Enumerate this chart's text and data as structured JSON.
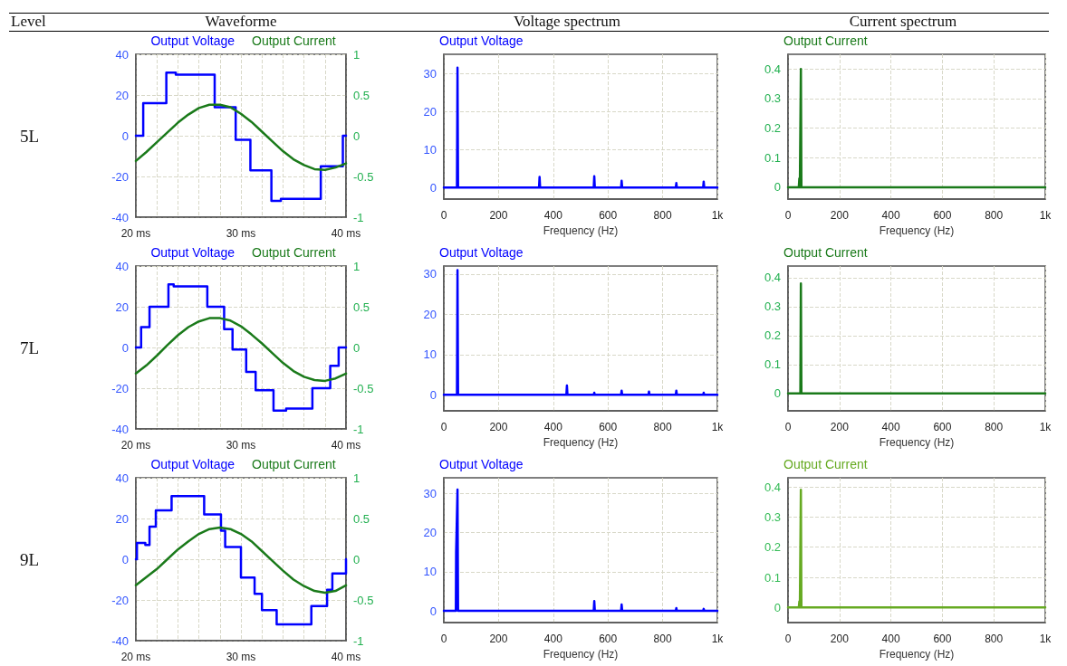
{
  "chart_data": [
    {
      "type": "step",
      "title": "Waveforme",
      "annotations": [
        "Level",
        "5L"
      ],
      "legend": "top",
      "grid": true,
      "xlim": [
        20,
        40
      ],
      "xticks": [
        {
          "value": 20,
          "label": "20 ms"
        },
        {
          "value": 22,
          "label": null
        },
        {
          "value": 24,
          "label": null
        },
        {
          "value": 26,
          "label": null
        },
        {
          "value": 28,
          "label": null
        },
        {
          "value": 30,
          "label": "30 ms"
        },
        {
          "value": 32,
          "label": null
        },
        {
          "value": 34,
          "label": null
        },
        {
          "value": 36,
          "label": null
        },
        {
          "value": 38,
          "label": null
        },
        {
          "value": 40,
          "label": "40 ms"
        }
      ],
      "ylim": [
        -40,
        40
      ],
      "yticks": [
        -40,
        -20,
        0,
        20,
        40
      ],
      "y2lim": [
        -1,
        1
      ],
      "y2ticks": [
        -1,
        -0.5,
        0,
        0.5,
        1
      ],
      "series": [
        {
          "name": "Output Voltage",
          "color": "#0000ff",
          "x": [
            20,
            20.7,
            22.9,
            23.8,
            27.5,
            29.5,
            30.9,
            32.9,
            33.8,
            37.6,
            39.7,
            40
          ],
          "values": [
            0,
            16,
            31,
            30,
            14,
            -2,
            -17,
            -32,
            -31,
            -15,
            0,
            0
          ]
        },
        {
          "name": "Output Current",
          "type": "line",
          "axis": "y2",
          "color": "#1a7a1a",
          "x": [
            20,
            21,
            22,
            23,
            24,
            25,
            26,
            27,
            28,
            29,
            30,
            31,
            32,
            33,
            34,
            35,
            36,
            37,
            38,
            39,
            40
          ],
          "values": [
            -0.31,
            -0.2,
            -0.08,
            0.04,
            0.16,
            0.26,
            0.34,
            0.38,
            0.38,
            0.35,
            0.27,
            0.17,
            0.05,
            -0.07,
            -0.19,
            -0.29,
            -0.36,
            -0.41,
            -0.42,
            -0.39,
            -0.34
          ]
        }
      ]
    },
    {
      "type": "line",
      "title": "Voltage spectrum",
      "legend": "top left",
      "grid": true,
      "xlabel": "Frequency (Hz)",
      "xlim": [
        0,
        1000
      ],
      "xticks": [
        0,
        200,
        400,
        600,
        800,
        {
          "value": 1000,
          "label": "1k"
        }
      ],
      "ylim": [
        -3,
        35
      ],
      "yticks": [
        0,
        10,
        20,
        30
      ],
      "series": [
        {
          "name": "Output Voltage",
          "color": "#0000ff",
          "x": [
            0,
            48,
            50,
            52,
            348,
            350,
            352,
            548,
            550,
            552,
            648,
            650,
            652,
            848,
            850,
            852,
            948,
            950,
            952,
            1000
          ],
          "values": [
            0,
            0,
            31.5,
            0,
            0,
            2.8,
            0,
            0,
            3,
            0,
            0,
            1.8,
            0,
            0,
            1.2,
            0,
            0,
            1.6,
            0,
            0
          ]
        }
      ]
    },
    {
      "type": "line",
      "title": "Current spectrum",
      "legend": "top left",
      "grid": true,
      "xlabel": "Frequency (Hz)",
      "xlim": [
        0,
        1000
      ],
      "xticks": [
        0,
        200,
        400,
        600,
        800,
        {
          "value": 1000,
          "label": "1k"
        }
      ],
      "ylim": [
        -0.04,
        0.45
      ],
      "yticks": [
        0,
        0.1,
        0.2,
        0.3,
        0.4
      ],
      "series": [
        {
          "name": "Output Current",
          "color": "#1a7a1a",
          "x": [
            0,
            42,
            44,
            46,
            48,
            50,
            52,
            1000
          ],
          "values": [
            0,
            0,
            0.03,
            0,
            0,
            0.4,
            0,
            0
          ]
        }
      ]
    },
    {
      "type": "step",
      "annotations": [
        "7L"
      ],
      "legend": "top",
      "grid": true,
      "xlim": [
        20,
        40
      ],
      "xticks": [
        {
          "value": 20,
          "label": "20 ms"
        },
        {
          "value": 22,
          "label": null
        },
        {
          "value": 24,
          "label": null
        },
        {
          "value": 26,
          "label": null
        },
        {
          "value": 28,
          "label": null
        },
        {
          "value": 30,
          "label": "30 ms"
        },
        {
          "value": 32,
          "label": null
        },
        {
          "value": 34,
          "label": null
        },
        {
          "value": 36,
          "label": null
        },
        {
          "value": 38,
          "label": null
        },
        {
          "value": 40,
          "label": "40 ms"
        }
      ],
      "ylim": [
        -40,
        40
      ],
      "yticks": [
        -40,
        -20,
        0,
        20,
        40
      ],
      "y2lim": [
        -1,
        1
      ],
      "y2ticks": [
        -1,
        -0.5,
        0,
        0.5,
        1
      ],
      "series": [
        {
          "name": "Output Voltage",
          "color": "#0000ff",
          "x": [
            20,
            20.5,
            21.3,
            23.1,
            23.6,
            26.8,
            28.4,
            29.2,
            30.5,
            31.4,
            33.1,
            34.3,
            36.8,
            38.5,
            39.3,
            40
          ],
          "values": [
            0,
            10,
            20,
            31,
            30,
            20,
            9,
            -1,
            -12,
            -21,
            -31,
            -30,
            -20,
            -9,
            0,
            0
          ]
        },
        {
          "name": "Output Current",
          "type": "line",
          "axis": "y2",
          "color": "#1a7a1a",
          "x": [
            20,
            21,
            22,
            23,
            24,
            25,
            26,
            27,
            28,
            29,
            30,
            31,
            32,
            33,
            34,
            35,
            36,
            37,
            38,
            39,
            40
          ],
          "values": [
            -0.32,
            -0.22,
            -0.1,
            0.03,
            0.15,
            0.25,
            0.32,
            0.36,
            0.36,
            0.33,
            0.26,
            0.16,
            0.05,
            -0.07,
            -0.19,
            -0.29,
            -0.36,
            -0.4,
            -0.41,
            -0.38,
            -0.32
          ]
        }
      ]
    },
    {
      "type": "line",
      "legend": "top left",
      "grid": true,
      "xlabel": "Frequency (Hz)",
      "xlim": [
        0,
        1000
      ],
      "xticks": [
        0,
        200,
        400,
        600,
        800,
        {
          "value": 1000,
          "label": "1k"
        }
      ],
      "ylim": [
        -4,
        32
      ],
      "yticks": [
        0,
        10,
        20,
        30
      ],
      "series": [
        {
          "name": "Output Voltage",
          "color": "#0000ff",
          "x": [
            0,
            48,
            50,
            52,
            448,
            450,
            452,
            548,
            550,
            552,
            648,
            650,
            652,
            748,
            750,
            752,
            848,
            850,
            852,
            948,
            950,
            952,
            1000
          ],
          "values": [
            0,
            0,
            31,
            0,
            0,
            2.3,
            0,
            0,
            0.5,
            0,
            0,
            1,
            0,
            0,
            0.8,
            0,
            0,
            1,
            0,
            0,
            0.5,
            0,
            0
          ]
        }
      ]
    },
    {
      "type": "line",
      "legend": "top left",
      "grid": true,
      "xlabel": "Frequency (Hz)",
      "xlim": [
        0,
        1000
      ],
      "xticks": [
        0,
        200,
        400,
        600,
        800,
        {
          "value": 1000,
          "label": "1k"
        }
      ],
      "ylim": [
        -0.06,
        0.44
      ],
      "yticks": [
        0,
        0.1,
        0.2,
        0.3,
        0.4
      ],
      "series": [
        {
          "name": "Output Current",
          "color": "#1a7a1a",
          "x": [
            0,
            48,
            50,
            52,
            1000
          ],
          "values": [
            0,
            0,
            0.38,
            0,
            0
          ]
        }
      ]
    },
    {
      "type": "step",
      "annotations": [
        "9L"
      ],
      "legend": "top",
      "grid": true,
      "xlim": [
        20,
        40
      ],
      "xticks": [
        {
          "value": 20,
          "label": "20 ms"
        },
        {
          "value": 22,
          "label": null
        },
        {
          "value": 24,
          "label": null
        },
        {
          "value": 26,
          "label": null
        },
        {
          "value": 28,
          "label": null
        },
        {
          "value": 30,
          "label": "30 ms"
        },
        {
          "value": 32,
          "label": null
        },
        {
          "value": 34,
          "label": null
        },
        {
          "value": 36,
          "label": null
        },
        {
          "value": 38,
          "label": null
        },
        {
          "value": 40,
          "label": "40 ms"
        }
      ],
      "ylim": [
        -40,
        40
      ],
      "yticks": [
        -40,
        -20,
        0,
        20,
        40
      ],
      "y2lim": [
        -1,
        1
      ],
      "y2ticks": [
        -1,
        -0.5,
        0,
        0.5,
        1
      ],
      "series": [
        {
          "name": "Output Voltage",
          "color": "#0000ff",
          "x": [
            20,
            20.1,
            20.9,
            21.3,
            21.9,
            23.4,
            26.5,
            28.1,
            28.5,
            30,
            31.3,
            32,
            33.4,
            36.7,
            38.2,
            38.7,
            40
          ],
          "values": [
            0,
            8,
            7,
            16,
            24,
            31,
            22,
            14,
            6,
            -9,
            -17,
            -25,
            -32,
            -23,
            -15,
            -7,
            0
          ]
        },
        {
          "name": "Output Current",
          "type": "line",
          "axis": "y2",
          "color": "#1a7a1a",
          "x": [
            20,
            21,
            22,
            23,
            24,
            25,
            26,
            27,
            28,
            29,
            30,
            31,
            32,
            33,
            34,
            35,
            36,
            37,
            38,
            39,
            40
          ],
          "values": [
            -0.32,
            -0.22,
            -0.12,
            0,
            0.12,
            0.22,
            0.31,
            0.37,
            0.39,
            0.37,
            0.31,
            0.22,
            0.1,
            -0.02,
            -0.14,
            -0.25,
            -0.33,
            -0.39,
            -0.41,
            -0.39,
            -0.32
          ]
        }
      ]
    },
    {
      "type": "line",
      "legend": "top left",
      "grid": true,
      "xlabel": "Frequency (Hz)",
      "xlim": [
        0,
        1000
      ],
      "xticks": [
        0,
        200,
        400,
        600,
        800,
        {
          "value": 1000,
          "label": "1k"
        }
      ],
      "ylim": [
        -3,
        34
      ],
      "yticks": [
        0,
        10,
        20,
        30
      ],
      "series": [
        {
          "name": "Output Voltage",
          "color": "#0000ff",
          "x": [
            0,
            44,
            45,
            47,
            50,
            52,
            548,
            550,
            552,
            648,
            650,
            652,
            848,
            850,
            852,
            948,
            950,
            952,
            1000
          ],
          "values": [
            0,
            0,
            15,
            15,
            31,
            0,
            0,
            2.5,
            0,
            0,
            1.6,
            0,
            0,
            0.7,
            0,
            0,
            0.5,
            0,
            0
          ]
        }
      ]
    },
    {
      "type": "line",
      "legend": "top left",
      "grid": true,
      "xlabel": "Frequency (Hz)",
      "xlim": [
        0,
        1000
      ],
      "xticks": [
        0,
        200,
        400,
        600,
        800,
        {
          "value": 1000,
          "label": "1k"
        }
      ],
      "ylim": [
        -0.05,
        0.43
      ],
      "yticks": [
        0,
        0.1,
        0.2,
        0.3,
        0.4
      ],
      "series": [
        {
          "name": "Output Current",
          "color": "#66aa22",
          "x": [
            0,
            42,
            44,
            46,
            48,
            50,
            52,
            1000
          ],
          "values": [
            0,
            0,
            0.02,
            0,
            0,
            0.39,
            0,
            0
          ]
        }
      ]
    }
  ]
}
